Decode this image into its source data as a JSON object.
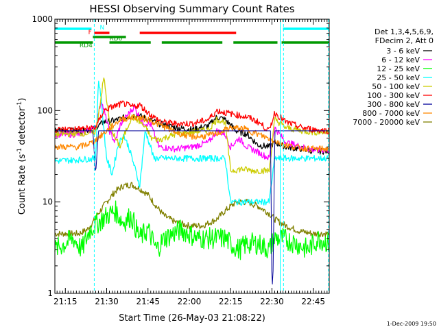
{
  "chart_data": {
    "type": "line",
    "title": "HESSI Observing Summary Count Rates",
    "xlabel": "Start Time (26-May-03 21:08:22)",
    "ylabel_main": "Count Rate (s",
    "ylabel_sup1": "-1",
    "ylabel_mid": " detector",
    "ylabel_sup2": "-1",
    "ylabel_end": ")",
    "y_scale": "log",
    "ylim": [
      1,
      1000
    ],
    "xlim_minutes": [
      -3.8,
      95.8
    ],
    "x_ticks": [
      {
        "minute": 0,
        "label": "21:15"
      },
      {
        "minute": 15,
        "label": "21:30"
      },
      {
        "minute": 30,
        "label": "21:45"
      },
      {
        "minute": 45,
        "label": "22:00"
      },
      {
        "minute": 60,
        "label": "22:15"
      },
      {
        "minute": 75,
        "label": "22:30"
      },
      {
        "minute": 90,
        "label": "22:45"
      }
    ],
    "y_ticks": [
      {
        "value": 1,
        "label": "1"
      },
      {
        "value": 10,
        "label": "10"
      },
      {
        "value": 100,
        "label": "100"
      },
      {
        "value": 1000,
        "label": "1000"
      }
    ],
    "legend_placement": "right",
    "legend_header": [
      "Det 1,3,4,5,6,9,",
      "FDecim 2, Att 0"
    ],
    "series": [
      {
        "name": "3 - 6 keV",
        "color": "#000000",
        "x": [
          -3.8,
          5,
          10,
          14,
          18,
          22,
          26,
          30,
          34,
          40,
          46,
          52,
          55,
          58,
          62,
          66,
          70,
          74,
          76,
          80,
          86,
          90,
          95.8
        ],
        "y": [
          60,
          60,
          62,
          75,
          78,
          85,
          90,
          80,
          72,
          65,
          62,
          68,
          85,
          80,
          60,
          55,
          42,
          40,
          45,
          40,
          38,
          36,
          36
        ]
      },
      {
        "name": "6 - 12 keV",
        "color": "#ff00ff",
        "x": [
          -3.8,
          5,
          11,
          13,
          14,
          16,
          18,
          20,
          22,
          25,
          28,
          31,
          34,
          40,
          46,
          52,
          55,
          58,
          60,
          63,
          66,
          70,
          74,
          76,
          80,
          86,
          90,
          95.8
        ],
        "y": [
          55,
          55,
          65,
          130,
          100,
          60,
          45,
          70,
          85,
          110,
          75,
          70,
          40,
          38,
          40,
          45,
          60,
          55,
          40,
          50,
          40,
          35,
          30,
          65,
          45,
          40,
          37,
          37
        ]
      },
      {
        "name": "12 - 25 keV",
        "color": "#00ff00",
        "x": [
          -3.8,
          3,
          6,
          9,
          12,
          15,
          18,
          21,
          24,
          27,
          30,
          33,
          36,
          42,
          48,
          54,
          58,
          60,
          63,
          66,
          70,
          74,
          76,
          79,
          84,
          88,
          92,
          95.8
        ],
        "y": [
          3,
          4,
          3,
          5,
          6,
          7,
          8,
          6,
          7,
          4,
          5,
          3,
          4,
          5,
          4,
          4,
          4,
          3.5,
          3,
          3.5,
          3.5,
          3,
          4,
          4,
          3.5,
          3,
          4,
          3.5
        ]
      },
      {
        "name": "25 - 50 keV",
        "color": "#00ffff",
        "x": [
          -3.8,
          5,
          11,
          12,
          13,
          14,
          15,
          17,
          19,
          21,
          23,
          25,
          27,
          29,
          31,
          32,
          34,
          40,
          46,
          52,
          56,
          58,
          60,
          64,
          68,
          72,
          74,
          76,
          80,
          86,
          90,
          95.8
        ],
        "y": [
          28,
          29,
          30,
          220,
          140,
          60,
          30,
          20,
          40,
          55,
          40,
          25,
          15,
          60,
          40,
          30,
          30,
          30,
          30,
          30,
          30,
          30,
          10,
          10,
          10,
          10,
          10,
          30,
          30,
          30,
          30,
          30
        ]
      },
      {
        "name": "50 - 100 keV",
        "color": "#cccc00",
        "x": [
          -3.8,
          5,
          11,
          14,
          16,
          18,
          20,
          22,
          24,
          26,
          28,
          30,
          31,
          34,
          40,
          46,
          52,
          55,
          58,
          60,
          64,
          68,
          72,
          74,
          76,
          80,
          86,
          90,
          95.8
        ],
        "y": [
          55,
          56,
          58,
          230,
          75,
          50,
          40,
          60,
          85,
          80,
          70,
          60,
          50,
          48,
          55,
          58,
          62,
          80,
          75,
          22,
          23,
          22,
          22,
          22,
          80,
          65,
          60,
          58,
          58
        ]
      },
      {
        "name": "100 - 300 keV",
        "color": "#ff0000",
        "x": [
          -3.8,
          5,
          11,
          14,
          17,
          21,
          24,
          27,
          30,
          32,
          35,
          40,
          46,
          52,
          55,
          58,
          62,
          66,
          70,
          74,
          76,
          80,
          86,
          90,
          95.8
        ],
        "y": [
          62,
          63,
          65,
          100,
          110,
          120,
          110,
          115,
          95,
          85,
          75,
          72,
          72,
          80,
          100,
          95,
          90,
          85,
          75,
          60,
          95,
          75,
          65,
          62,
          60
        ]
      },
      {
        "name": "300 - 800 keV",
        "color": "#000099",
        "x": [
          -3.8,
          10,
          11,
          12,
          30,
          60,
          74.5,
          75,
          75.5,
          76,
          95.8
        ],
        "y": [
          60,
          60,
          20,
          60,
          60,
          60,
          60,
          1,
          2,
          60,
          60
        ]
      },
      {
        "name": "800 - 7000 keV",
        "color": "#ff8800",
        "x": [
          -3.8,
          5,
          10,
          15,
          20,
          25,
          30,
          35,
          40,
          45,
          50,
          55,
          60,
          65,
          70,
          75,
          80,
          85,
          90,
          95.8
        ],
        "y": [
          40,
          40,
          45,
          60,
          80,
          85,
          80,
          68,
          58,
          52,
          52,
          56,
          65,
          63,
          55,
          48,
          42,
          39,
          38,
          38
        ]
      },
      {
        "name": "7000 - 20000 keV",
        "color": "#808000",
        "x": [
          -3.8,
          0,
          5,
          8,
          10,
          12,
          15,
          18,
          21,
          24,
          27,
          30,
          33,
          36,
          40,
          45,
          50,
          55,
          58,
          62,
          66,
          70,
          74,
          76,
          80,
          85,
          90,
          95.8
        ],
        "y": [
          4.5,
          4.5,
          4.5,
          5,
          6,
          7.5,
          10,
          13,
          15,
          15.5,
          14,
          12,
          9,
          7,
          6,
          5.5,
          5.5,
          6.5,
          8,
          10,
          10,
          9,
          7.5,
          6.5,
          5.5,
          4.8,
          4.5,
          4.5
        ]
      }
    ],
    "flag_bars": [
      {
        "label": "N",
        "color": "#00ffff",
        "segments": [
          [
            -3.8,
            9.5
          ],
          [
            79,
            95.8
          ]
        ]
      },
      {
        "label": "F",
        "color": "#ff0000",
        "segments": [
          [
            10.5,
            16
          ],
          [
            27,
            62
          ]
        ]
      },
      {
        "label": "RD0",
        "color": "#009900",
        "segments": [
          [
            10,
            22
          ]
        ]
      },
      {
        "label": "RD4",
        "color": "#009900",
        "segments": [
          [
            -3.8,
            10
          ],
          [
            16,
            31
          ],
          [
            35,
            57
          ],
          [
            61,
            77
          ],
          [
            78.5,
            95.8
          ]
        ]
      }
    ],
    "vertical_markers": [
      {
        "minute": -3.8,
        "style": "solid",
        "color": "#00ffff"
      },
      {
        "minute": 10.5,
        "style": "dashed",
        "color": "#00ffff"
      },
      {
        "minute": 78,
        "style": "solid",
        "color": "#00ffff"
      },
      {
        "minute": 79.2,
        "style": "dashed",
        "color": "#00ffff"
      },
      {
        "minute": 95.5,
        "style": "dashed",
        "color": "#00ffff"
      }
    ]
  },
  "footer_date": "1-Dec-2009 19:50"
}
